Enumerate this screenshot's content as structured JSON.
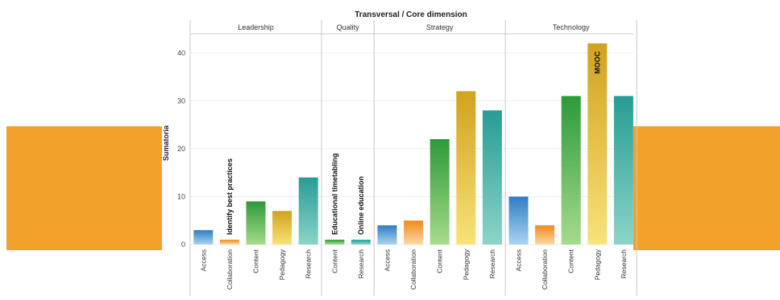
{
  "colors": {
    "decor_orange": "#F2A12A",
    "grid": "#EDEDED",
    "frame": "#C8C8C8"
  },
  "chart_data": {
    "type": "bar",
    "title": "Transversal / Core dimension",
    "ylabel": "Sumatoria",
    "xlabel": "",
    "ylim": [
      0,
      44
    ],
    "yticks": [
      0,
      10,
      20,
      30,
      40
    ],
    "grid": true,
    "panels": [
      {
        "name": "Leadership",
        "categories": [
          "Access",
          "Collaboration",
          "Content",
          "Pedagogy",
          "Research"
        ],
        "values": [
          3,
          1,
          9,
          7,
          14
        ],
        "annotations": [
          {
            "category": "Collaboration",
            "text": "Identify best practices"
          }
        ]
      },
      {
        "name": "Quality",
        "categories": [
          "Content",
          "Research"
        ],
        "values": [
          1,
          1
        ],
        "annotations": [
          {
            "category": "Content",
            "text": "Educational timetabling"
          },
          {
            "category": "Research",
            "text": "Online education"
          }
        ]
      },
      {
        "name": "Strategy",
        "categories": [
          "Access",
          "Collaboration",
          "Content",
          "Pedagogy",
          "Research"
        ],
        "values": [
          4,
          5,
          22,
          32,
          28
        ],
        "annotations": []
      },
      {
        "name": "Technology",
        "categories": [
          "Access",
          "Collaboration",
          "Content",
          "Pedagogy",
          "Research"
        ],
        "values": [
          10,
          4,
          31,
          42,
          31
        ],
        "annotations": [
          {
            "category": "Pedagogy",
            "text": "MOOC"
          }
        ]
      }
    ],
    "category_colors": {
      "Access": [
        "#2E7DC4",
        "#A9D4F0"
      ],
      "Collaboration": [
        "#EE8A1C",
        "#FCD9A4"
      ],
      "Content": [
        "#2C9A3A",
        "#A6DB8A"
      ],
      "Pedagogy": [
        "#D1A21E",
        "#F8E27A"
      ],
      "Research": [
        "#279C95",
        "#8BD4C8"
      ]
    }
  }
}
